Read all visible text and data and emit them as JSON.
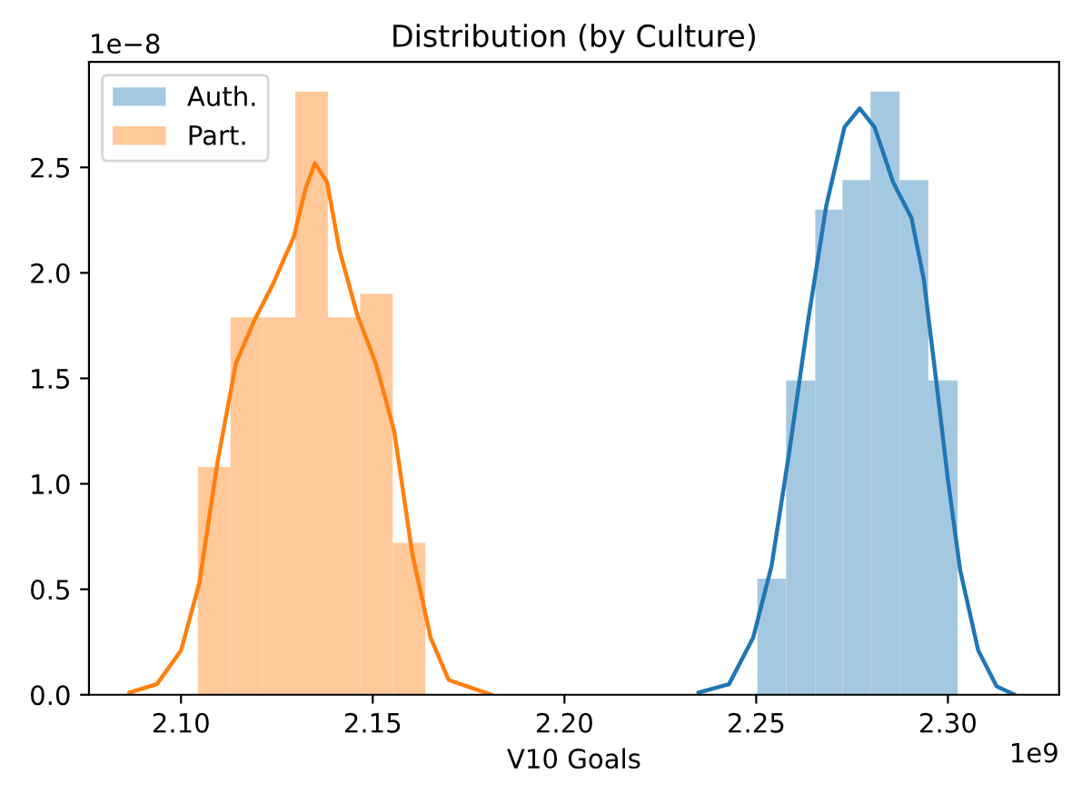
{
  "chart_data": {
    "type": "histogram",
    "title": "Distribution (by Culture)",
    "xlabel": "V10 Goals",
    "annotations": [
      "1e−8",
      "1e9"
    ],
    "xlim": [
      2.076,
      2.329
    ],
    "ylim": [
      0,
      3.0
    ],
    "xticks": [
      {
        "value": 2.1,
        "label": "2.10"
      },
      {
        "value": 2.15,
        "label": "2.15"
      },
      {
        "value": 2.2,
        "label": "2.20"
      },
      {
        "value": 2.25,
        "label": "2.25"
      },
      {
        "value": 2.3,
        "label": "2.30"
      }
    ],
    "yticks": [
      {
        "value": 0,
        "label": "0.0"
      },
      {
        "value": 0.5,
        "label": "0.5"
      },
      {
        "value": 1.0,
        "label": "1.0"
      },
      {
        "value": 1.5,
        "label": "1.5"
      },
      {
        "value": 2.0,
        "label": "2.0"
      },
      {
        "value": 2.5,
        "label": "2.5"
      }
    ],
    "legend": "top left",
    "grid": false,
    "series": [
      {
        "name": "Auth.",
        "color": "#a5c8e1",
        "bins": [
          2.2503,
          2.2578,
          2.2654,
          2.2725,
          2.2798,
          2.2874,
          2.2949,
          2.3025
        ],
        "values": [
          0.55,
          1.49,
          2.3,
          2.44,
          2.86,
          2.44,
          1.49
        ]
      },
      {
        "name": "Part.",
        "color": "#ffc999",
        "bins": [
          2.1044,
          2.1129,
          2.1213,
          2.1298,
          2.1383,
          2.1467,
          2.1552,
          2.1637
        ],
        "values": [
          1.08,
          1.79,
          1.79,
          2.86,
          1.79,
          1.9,
          0.72
        ]
      },
      {
        "type": "line",
        "color": "#1f77b4",
        "x": [
          2.2349,
          2.2429,
          2.2492,
          2.254,
          2.2587,
          2.2635,
          2.2683,
          2.273,
          2.277,
          2.2809,
          2.2857,
          2.2905,
          2.2937,
          2.2968,
          2.3,
          2.3032,
          2.3079,
          2.3127,
          2.3174
        ],
        "values": [
          0.01,
          0.05,
          0.27,
          0.61,
          1.16,
          1.77,
          2.32,
          2.69,
          2.78,
          2.69,
          2.43,
          2.26,
          1.97,
          1.51,
          1.02,
          0.59,
          0.21,
          0.04,
          0.0
        ]
      },
      {
        "type": "line",
        "color": "#ff7f0e",
        "x": [
          2.0865,
          2.0937,
          2.1,
          2.1048,
          2.1095,
          2.1143,
          2.119,
          2.1238,
          2.1294,
          2.1325,
          2.1349,
          2.1381,
          2.1413,
          2.146,
          2.1508,
          2.1556,
          2.1603,
          2.1651,
          2.1698,
          2.181
        ],
        "values": [
          0.01,
          0.05,
          0.21,
          0.53,
          1.1,
          1.57,
          1.77,
          1.94,
          2.17,
          2.4,
          2.52,
          2.43,
          2.11,
          1.8,
          1.57,
          1.25,
          0.67,
          0.27,
          0.07,
          0.0
        ]
      }
    ]
  }
}
